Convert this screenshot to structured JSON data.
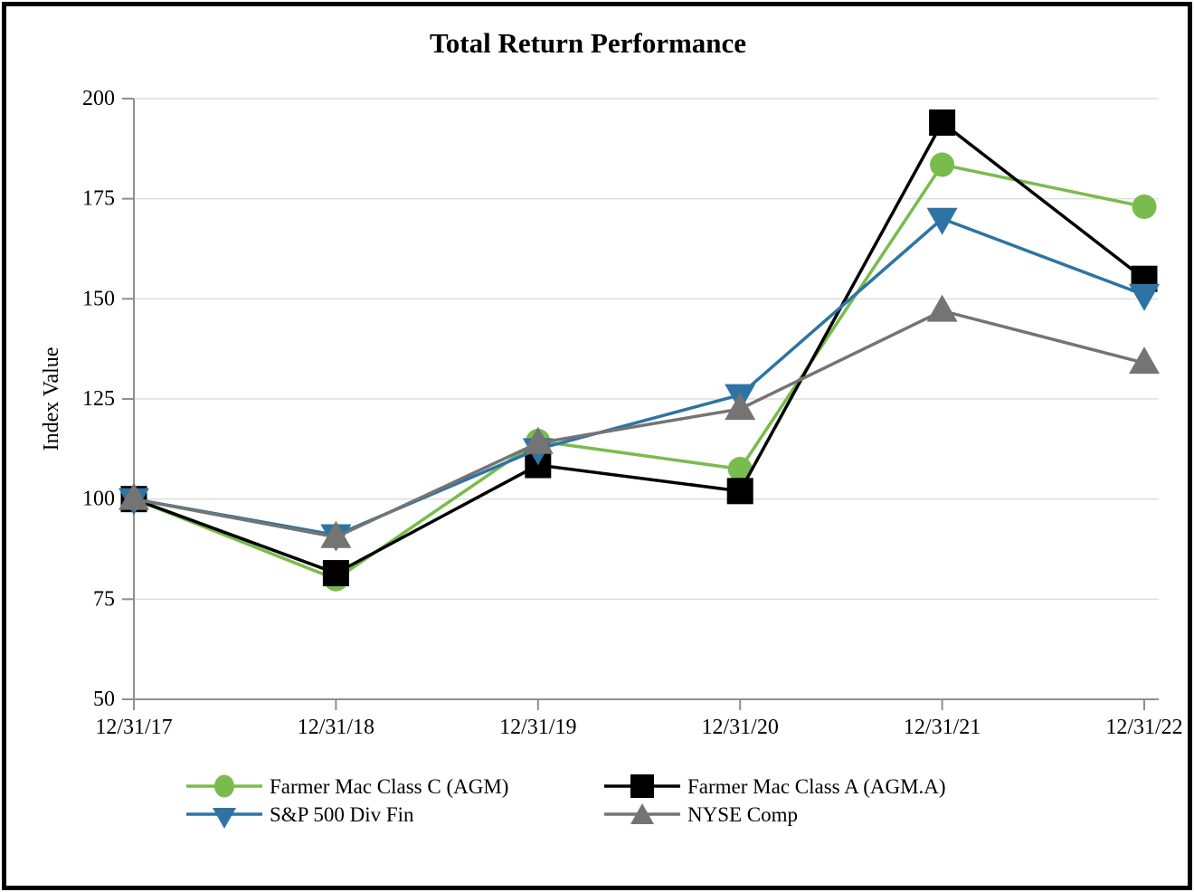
{
  "title": "Total Return Performance",
  "chart_data": {
    "type": "line",
    "title": "Total Return Performance",
    "xlabel": "",
    "ylabel": "Index Value",
    "categories": [
      "12/31/17",
      "12/31/18",
      "12/31/19",
      "12/31/20",
      "12/31/21",
      "12/31/22"
    ],
    "ylim": [
      50,
      200
    ],
    "y_ticks": [
      50,
      75,
      100,
      125,
      150,
      175,
      200
    ],
    "grid": "horizontal",
    "legend_position": "bottom",
    "series": [
      {
        "name": "Farmer Mac Class C (AGM)",
        "marker": "circle",
        "color": "#7ABB4D",
        "values": [
          100,
          80,
          114.5,
          107.5,
          183.5,
          173
        ]
      },
      {
        "name": "Farmer Mac Class A (AGM.A)",
        "marker": "square",
        "color": "#000000",
        "values": [
          100,
          81.5,
          108.5,
          102,
          194,
          155
        ]
      },
      {
        "name": "S&P 500 Div Fin",
        "marker": "triangle-down",
        "color": "#2D74A4",
        "values": [
          100,
          91,
          112.5,
          126,
          170,
          151
        ]
      },
      {
        "name": "NYSE Comp",
        "marker": "triangle-up",
        "color": "#747474",
        "values": [
          100,
          90.5,
          114,
          122.5,
          147,
          134
        ]
      }
    ]
  },
  "colors": {
    "grid_line": "#DEDEDE",
    "axis_line": "#8F8F8F",
    "border": "#000000",
    "background": "#FFFFFF",
    "text": "#000000"
  }
}
